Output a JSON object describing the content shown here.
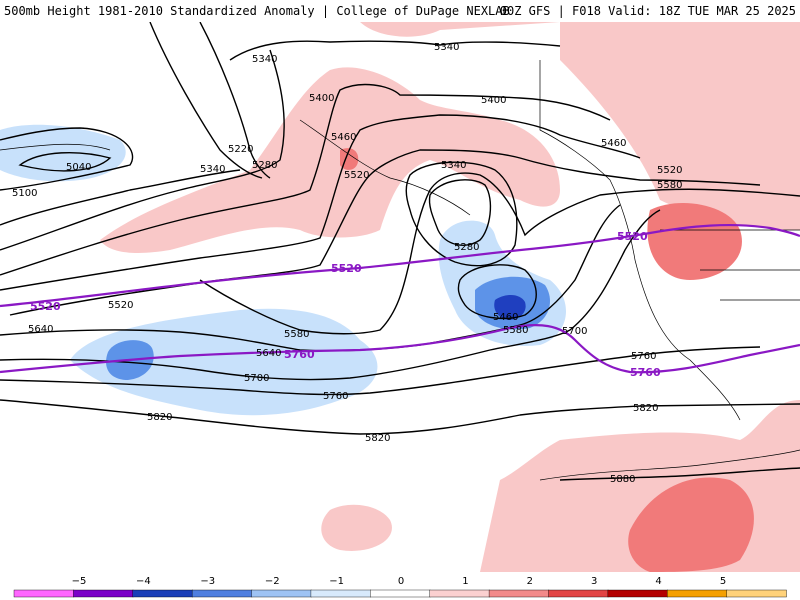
{
  "header": {
    "title_left": "500mb Height 1981-2010 Standardized Anomaly | College of DuPage NEXLAB",
    "title_right": "00Z GFS | F018 Valid: 18Z TUE MAR 25 2025"
  },
  "colors": {
    "pos1": "#f9c8c8",
    "pos2": "#f17a7a",
    "neg1": "#c8e1fb",
    "neg2": "#5d93e8",
    "neg3": "#1f3fbf",
    "purple_contour": "#8a18c4"
  },
  "contour_labels": {
    "h5340_a": "5340",
    "h5340_b": "5340",
    "h5340_c": "5340",
    "h5340_d": "5340",
    "h5400_a": "5400",
    "h5400_b": "5400",
    "h5460_a": "5460",
    "h5460_b": "5460",
    "h5460_c": "5460",
    "h5520_a": "5520",
    "h5520_b": "5520",
    "h5520_c": "5520",
    "h5580_a": "5580",
    "h5580_b": "5580",
    "h5580_c": "5580",
    "h5220": "5220",
    "h5280_a": "5280",
    "h5280_b": "5280",
    "h5040": "5040",
    "h5100": "5100",
    "h5640_a": "5640",
    "h5640_b": "5640",
    "h5700_a": "5700",
    "h5700_b": "5700",
    "h5760_a": "5760",
    "h5760_b": "5760",
    "h5820_a": "5820",
    "h5820_b": "5820",
    "h5820_c": "5820",
    "h5880": "5880"
  },
  "purple_labels": {
    "p5520_a": "5520",
    "p5520_b": "5520",
    "p5520_c": "5520",
    "p5760_a": "5760",
    "p5760_b": "5760"
  },
  "colorbar": {
    "ticks": [
      "−5",
      "−4",
      "−3",
      "−2",
      "−1",
      "0",
      "1",
      "2",
      "3",
      "4",
      "5"
    ],
    "colors": [
      "#ff66ff",
      "#7b00c8",
      "#1a3fb8",
      "#4f7fe0",
      "#9ec3f4",
      "#d8eafc",
      "#ffffff",
      "#fbd0d0",
      "#f28a8a",
      "#e24545",
      "#b40000",
      "#f5a000",
      "#ffd27a"
    ]
  }
}
